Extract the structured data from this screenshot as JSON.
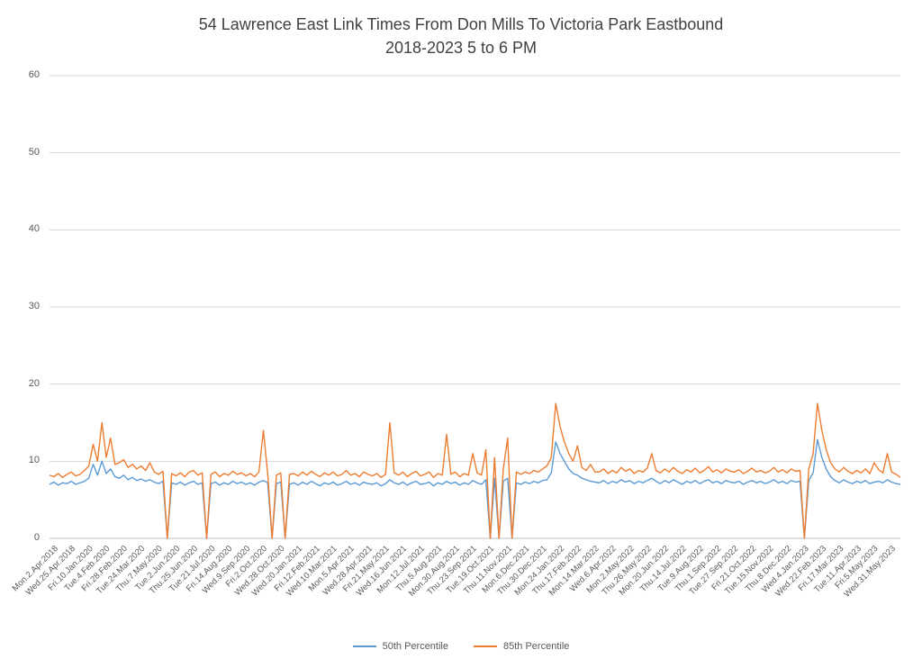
{
  "title": {
    "line1": "54 Lawrence East Link Times From Don Mills To Victoria Park Eastbound",
    "line2": "2018-2023 5 to 6 PM"
  },
  "chart_data": {
    "type": "line",
    "title": "54 Lawrence East Link Times From Don Mills To Victoria Park Eastbound",
    "subtitle": "2018-2023 5 to 6 PM",
    "ylim": [
      0,
      60
    ],
    "y_ticks": [
      0,
      10,
      20,
      30,
      40,
      50,
      60
    ],
    "grid": true,
    "legend_position": "bottom",
    "points_per_tick": 4,
    "x_tick_labels": [
      "Mon.2.Apr.2018",
      "Wed.25.Apr.2018",
      "Fri.10.Jan.2020",
      "Tue.4.Feb.2020",
      "Fri.28.Feb.2020",
      "Tue.24.Mar.2020",
      "Thu.7.May.2020",
      "Tue.2.Jun.2020",
      "Thu.25.Jun.2020",
      "Tue.21.Jul.2020",
      "Fri.14.Aug.2020",
      "Wed.9.Sep.2020",
      "Fri.2.Oct.2020",
      "Wed.28.Oct.2020",
      "Wed.20.Jan.2021",
      "Fri.12.Feb.2021",
      "Wed.10.Mar.2021",
      "Mon.5.Apr.2021",
      "Wed.28.Apr.2021",
      "Fri.21.May.2021",
      "Wed.16.Jun.2021",
      "Mon.12.Jul.2021",
      "Thu.5.Aug.2021",
      "Mon.30.Aug.2021",
      "Thu.23.Sep.2021",
      "Tue.19.Oct.2021",
      "Thu.11.Nov.2021",
      "Mon.6.Dec.2021",
      "Thu.30.Dec.2021",
      "Mon.24.Jan.2022",
      "Thu.17.Feb.2022",
      "Mon.14.Mar.2022",
      "Wed.6.Apr.2022",
      "Mon.2.May.2022",
      "Thu.26.May.2022",
      "Mon.20.Jun.2022",
      "Thu.14.Jul.2022",
      "Tue.9.Aug.2022",
      "Thu.1.Sep.2022",
      "Tue.27.Sep.2022",
      "Fri.21.Oct.2022",
      "Tue.15.Nov.2022",
      "Thu.8.Dec.2022",
      "Wed.4.Jan.2023",
      "Wed.22.Feb.2023",
      "Fri.17.Mar.2023",
      "Tue.11.Apr.2023",
      "Fri.5.May.2023",
      "Wed.31.May.2023"
    ],
    "series": [
      {
        "name": "50th Percentile",
        "color": "#5B9BD5",
        "values": [
          7.0,
          7.3,
          6.9,
          7.2,
          7.1,
          7.4,
          7.0,
          7.2,
          7.4,
          7.8,
          9.6,
          8.2,
          10.0,
          8.4,
          9.0,
          8.0,
          7.8,
          8.2,
          7.6,
          7.9,
          7.5,
          7.7,
          7.4,
          7.6,
          7.3,
          7.1,
          7.4,
          0,
          7.2,
          7.0,
          7.3,
          6.9,
          7.2,
          7.4,
          7.0,
          7.2,
          0,
          7.1,
          7.3,
          6.9,
          7.2,
          7.0,
          7.4,
          7.1,
          7.3,
          7.0,
          7.2,
          6.9,
          7.3,
          7.5,
          7.2,
          0,
          7.1,
          7.3,
          0,
          7.0,
          7.2,
          6.9,
          7.3,
          7.0,
          7.4,
          7.1,
          6.8,
          7.2,
          7.0,
          7.3,
          6.9,
          7.1,
          7.4,
          7.0,
          7.2,
          6.9,
          7.3,
          7.1,
          7.0,
          7.2,
          6.8,
          7.1,
          7.6,
          7.2,
          7.0,
          7.3,
          6.9,
          7.2,
          7.4,
          7.0,
          7.1,
          7.3,
          6.8,
          7.2,
          7.0,
          7.4,
          7.1,
          7.3,
          6.9,
          7.2,
          7.0,
          7.5,
          7.2,
          7.0,
          7.6,
          0,
          7.8,
          0,
          7.4,
          7.8,
          0,
          7.2,
          7.0,
          7.3,
          7.1,
          7.4,
          7.2,
          7.5,
          7.6,
          8.5,
          12.5,
          11.0,
          10.0,
          9.0,
          8.4,
          8.2,
          7.8,
          7.6,
          7.4,
          7.3,
          7.2,
          7.5,
          7.1,
          7.4,
          7.2,
          7.6,
          7.3,
          7.5,
          7.1,
          7.4,
          7.2,
          7.5,
          7.8,
          7.4,
          7.1,
          7.5,
          7.2,
          7.6,
          7.3,
          7.0,
          7.4,
          7.2,
          7.5,
          7.1,
          7.4,
          7.6,
          7.2,
          7.4,
          7.1,
          7.5,
          7.3,
          7.2,
          7.4,
          7.0,
          7.3,
          7.5,
          7.2,
          7.4,
          7.1,
          7.3,
          7.6,
          7.2,
          7.4,
          7.1,
          7.5,
          7.3,
          7.4,
          0,
          7.5,
          8.5,
          12.8,
          10.5,
          9.0,
          8.0,
          7.5,
          7.2,
          7.6,
          7.3,
          7.1,
          7.4,
          7.2,
          7.5,
          7.1,
          7.3,
          7.4,
          7.2,
          7.6,
          7.3,
          7.1,
          7.0
        ]
      },
      {
        "name": "85th Percentile",
        "color": "#ED7D31",
        "values": [
          8.2,
          8.0,
          8.4,
          7.9,
          8.3,
          8.6,
          8.1,
          8.3,
          8.8,
          9.4,
          12.2,
          10.0,
          15.0,
          10.5,
          13.0,
          9.6,
          9.8,
          10.2,
          9.2,
          9.6,
          9.0,
          9.4,
          8.8,
          9.8,
          8.6,
          8.3,
          8.7,
          0,
          8.4,
          8.1,
          8.5,
          8.0,
          8.6,
          8.8,
          8.2,
          8.5,
          0,
          8.3,
          8.6,
          8.0,
          8.4,
          8.2,
          8.7,
          8.3,
          8.5,
          8.1,
          8.4,
          8.0,
          8.6,
          14.0,
          8.4,
          0,
          8.2,
          8.5,
          0,
          8.3,
          8.4,
          8.1,
          8.6,
          8.2,
          8.7,
          8.3,
          8.0,
          8.5,
          8.2,
          8.6,
          8.1,
          8.3,
          8.8,
          8.2,
          8.4,
          8.0,
          8.6,
          8.3,
          8.1,
          8.4,
          7.9,
          8.3,
          15.0,
          8.5,
          8.2,
          8.6,
          8.0,
          8.4,
          8.7,
          8.1,
          8.3,
          8.6,
          7.9,
          8.4,
          8.2,
          13.5,
          8.3,
          8.6,
          8.0,
          8.4,
          8.2,
          11.0,
          8.5,
          8.2,
          11.5,
          0,
          10.5,
          0,
          9.0,
          13.0,
          0,
          8.6,
          8.3,
          8.6,
          8.4,
          8.8,
          8.6,
          9.0,
          9.4,
          10.5,
          17.5,
          14.5,
          12.5,
          11.0,
          10.0,
          12.0,
          9.2,
          8.8,
          9.6,
          8.6,
          8.6,
          9.0,
          8.4,
          8.8,
          8.5,
          9.2,
          8.7,
          9.0,
          8.4,
          8.8,
          8.6,
          9.1,
          11.0,
          8.8,
          8.5,
          9.0,
          8.6,
          9.2,
          8.7,
          8.4,
          8.9,
          8.6,
          9.1,
          8.5,
          8.8,
          9.3,
          8.6,
          8.9,
          8.5,
          9.0,
          8.7,
          8.6,
          8.9,
          8.4,
          8.7,
          9.1,
          8.6,
          8.8,
          8.5,
          8.7,
          9.2,
          8.6,
          8.9,
          8.5,
          9.0,
          8.7,
          8.8,
          0,
          9.0,
          11.0,
          17.5,
          14.0,
          11.5,
          9.8,
          9.0,
          8.6,
          9.2,
          8.7,
          8.4,
          8.8,
          8.5,
          9.0,
          8.4,
          9.8,
          8.9,
          8.5,
          11.0,
          8.6,
          8.3,
          7.9
        ]
      }
    ],
    "colors": {
      "gridline": "#D9D9D9",
      "axis_line": "#BFBFBF",
      "tick_text": "#595959",
      "title_text": "#404040"
    }
  },
  "legend": {
    "items": [
      "50th Percentile",
      "85th Percentile"
    ]
  }
}
